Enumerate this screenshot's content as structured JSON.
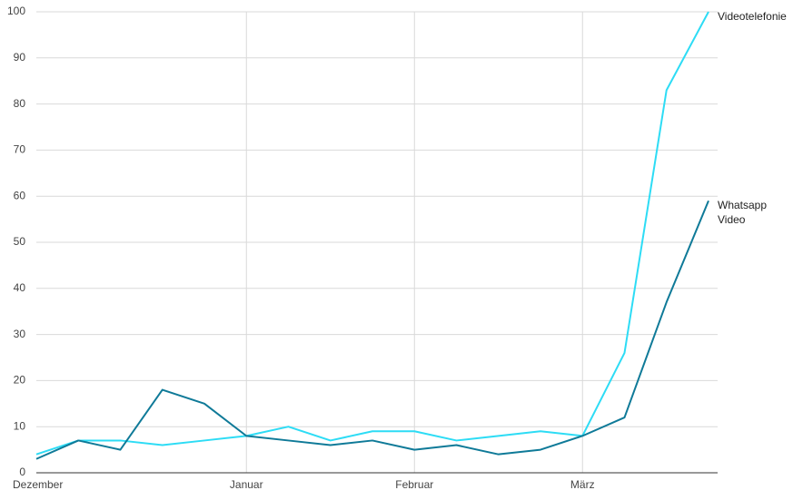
{
  "chart_data": {
    "type": "line",
    "categories": [
      "Dezember",
      null,
      null,
      null,
      null,
      "Januar",
      null,
      null,
      null,
      "Februar",
      null,
      null,
      null,
      "März",
      null,
      null,
      null
    ],
    "series": [
      {
        "name": "Videotelefonie",
        "color": "#2ddcf5",
        "values": [
          4,
          7,
          7,
          6,
          7,
          8,
          10,
          7,
          9,
          9,
          7,
          8,
          9,
          8,
          26,
          83,
          100
        ]
      },
      {
        "name": "Whatsapp Video",
        "color": "#0f7a98",
        "values": [
          3,
          7,
          5,
          18,
          15,
          8,
          7,
          6,
          7,
          5,
          6,
          4,
          5,
          8,
          12,
          37,
          59
        ]
      }
    ],
    "ylim": [
      0,
      100
    ],
    "yticks": [
      0,
      10,
      20,
      30,
      40,
      50,
      60,
      70,
      80,
      90,
      100
    ],
    "grid": true
  }
}
